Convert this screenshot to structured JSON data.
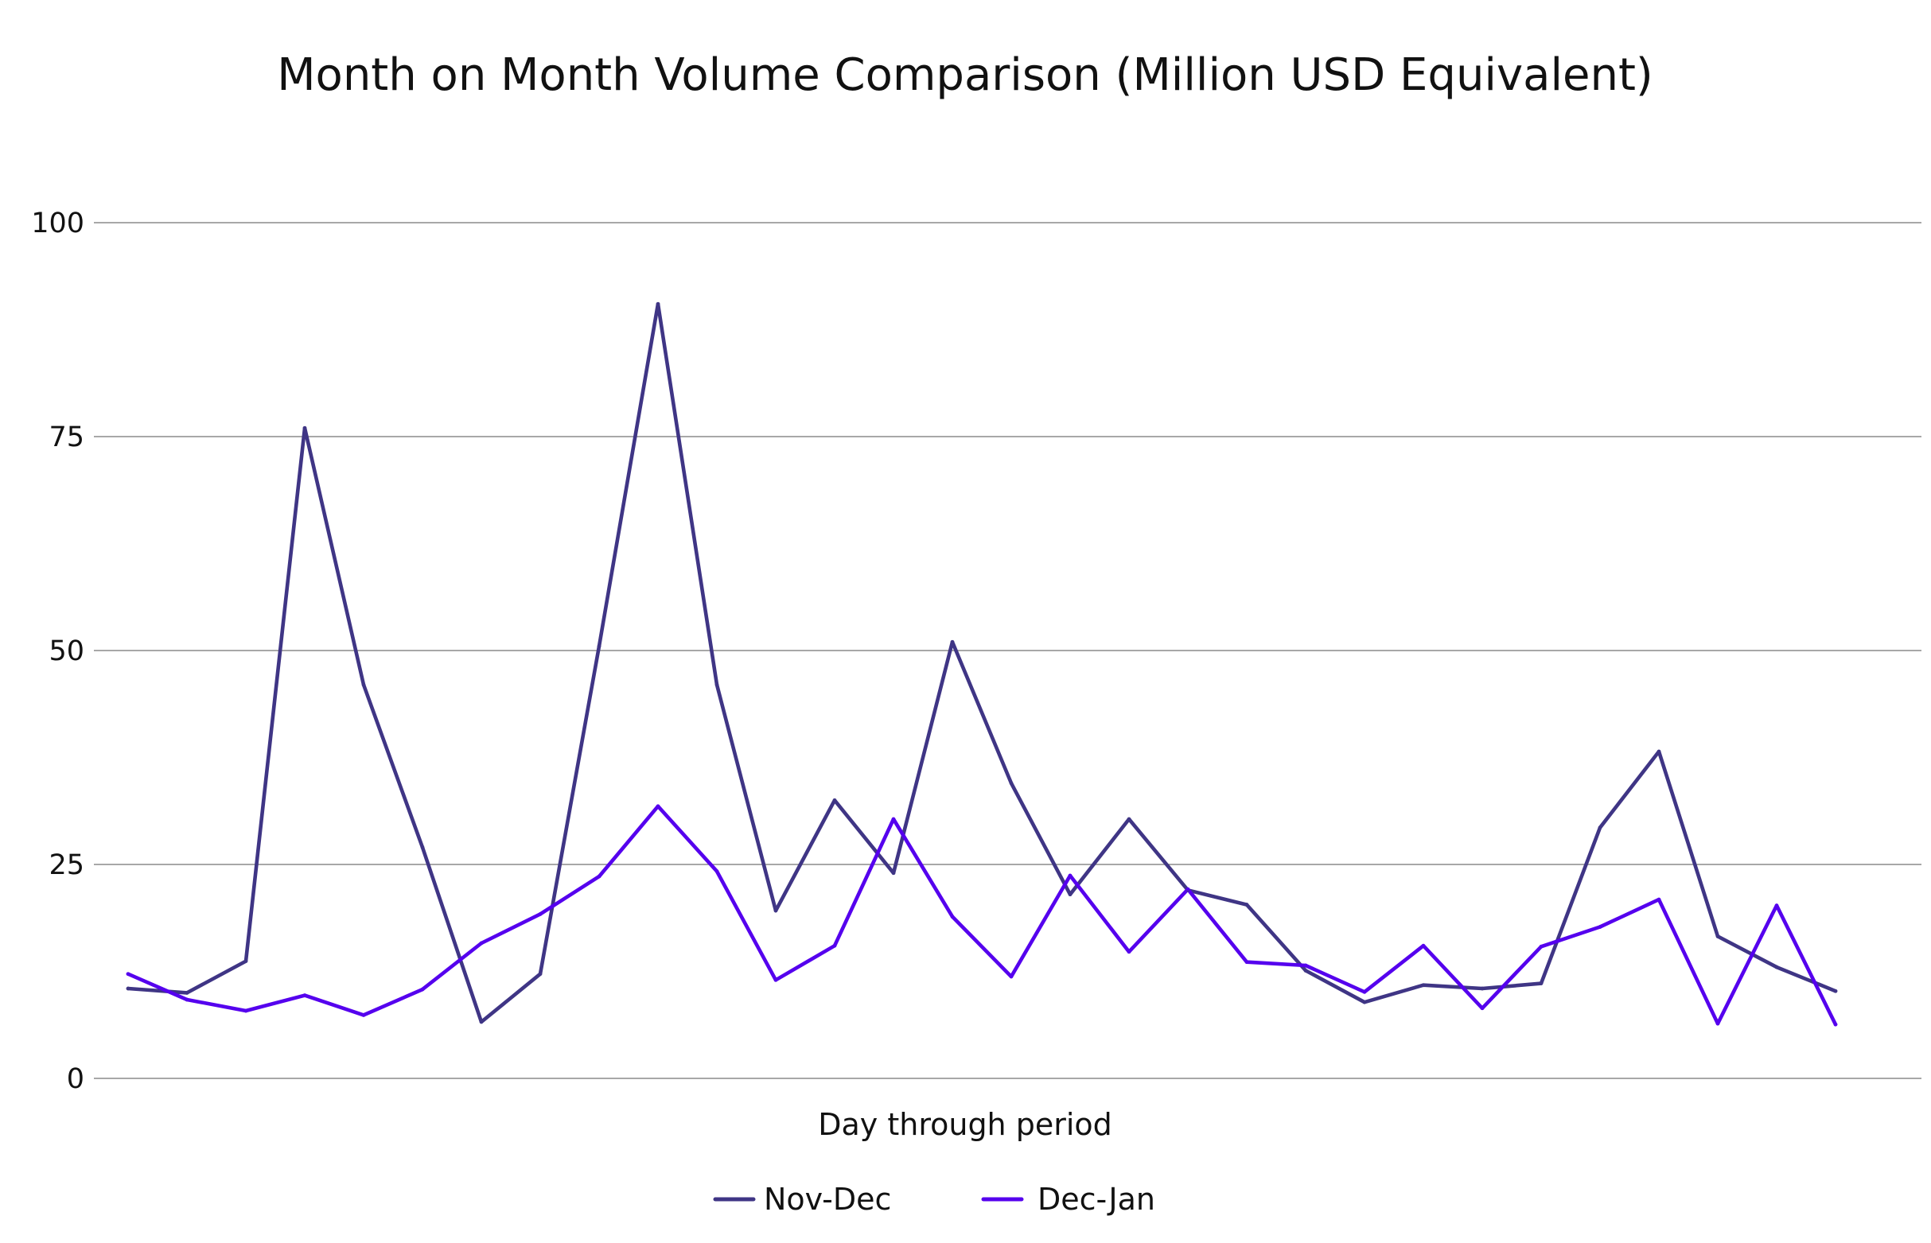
{
  "chart_data": {
    "type": "line",
    "title": "Month on Month Volume Comparison (Million USD Equivalent)",
    "xlabel": "Day through period",
    "ylabel": "",
    "ylim": [
      0,
      100
    ],
    "yticks": [
      0,
      25,
      50,
      75,
      100
    ],
    "grid": true,
    "legend_position": "bottom",
    "x": [
      1,
      2,
      3,
      4,
      5,
      6,
      7,
      8,
      9,
      10,
      11,
      12,
      13,
      14,
      15,
      16,
      17,
      18,
      19,
      20,
      21,
      22,
      23,
      24,
      25,
      26,
      27,
      28,
      29,
      30
    ],
    "series": [
      {
        "name": "Nov-Dec",
        "color": "#3f3585",
        "values": [
          10.5,
          10,
          13.7,
          76,
          46,
          27,
          6.6,
          12.2,
          50.5,
          90.5,
          46,
          19.6,
          32.5,
          24,
          51,
          34.5,
          21.5,
          30.3,
          22,
          20.3,
          12.6,
          8.9,
          10.9,
          10.5,
          11.1,
          29.3,
          38.2,
          16.6,
          13,
          10.2
        ]
      },
      {
        "name": "Dec-Jan",
        "color": "#5500ee",
        "values": [
          12.2,
          9.2,
          7.9,
          9.7,
          7.4,
          10.4,
          15.8,
          19.2,
          23.6,
          31.8,
          24.2,
          11.5,
          15.5,
          30.3,
          18.9,
          11.9,
          23.7,
          14.8,
          22.1,
          13.6,
          13.2,
          10.1,
          15.5,
          8.2,
          15.4,
          17.7,
          20.9,
          6.4,
          20.2,
          6.3
        ]
      }
    ]
  }
}
